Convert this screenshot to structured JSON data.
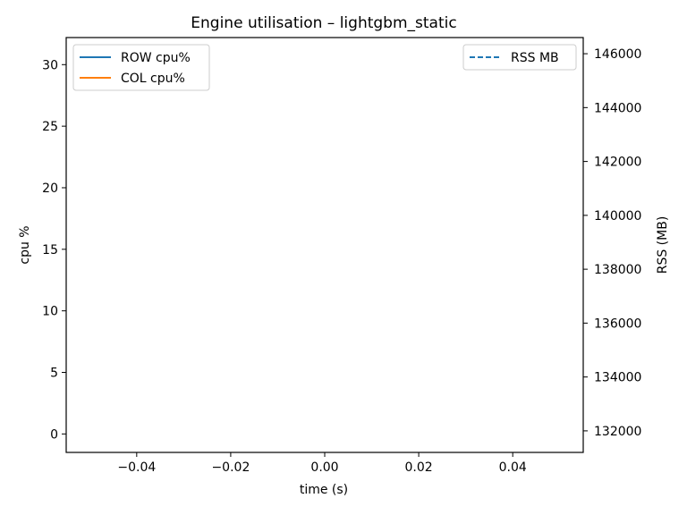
{
  "chart_data": {
    "type": "line",
    "title": "Engine utilisation – lightgbm_static",
    "xlabel": "time (s)",
    "ylabel": "cpu %",
    "y2label": "RSS (MB)",
    "xlim": [
      -0.055,
      0.055
    ],
    "ylim": [
      -1.5,
      32.2
    ],
    "y2lim": [
      131200,
      146600
    ],
    "x_ticks": [
      -0.04,
      -0.02,
      0.0,
      0.02,
      0.04
    ],
    "x_tick_labels": [
      "−0.04",
      "−0.02",
      "0.00",
      "0.02",
      "0.04"
    ],
    "y_ticks": [
      0,
      5,
      10,
      15,
      20,
      25,
      30
    ],
    "y_tick_labels": [
      "0",
      "5",
      "10",
      "15",
      "20",
      "25",
      "30"
    ],
    "y2_ticks": [
      132000,
      134000,
      136000,
      138000,
      140000,
      142000,
      144000,
      146000
    ],
    "y2_tick_labels": [
      "132000",
      "134000",
      "136000",
      "138000",
      "140000",
      "142000",
      "144000",
      "146000"
    ],
    "grid": false,
    "series": [
      {
        "name": "ROW cpu%",
        "axis": "left",
        "color": "#1f77b4",
        "style": "solid",
        "x": [],
        "values": []
      },
      {
        "name": "COL cpu%",
        "axis": "left",
        "color": "#ff7f0e",
        "style": "solid",
        "x": [],
        "values": []
      },
      {
        "name": "RSS MB",
        "axis": "right",
        "color": "#1f77b4",
        "style": "dashed",
        "x": [],
        "values": []
      }
    ],
    "legends": [
      {
        "placement": "upper-left",
        "entries": [
          "ROW cpu%",
          "COL cpu%"
        ]
      },
      {
        "placement": "upper-right",
        "entries": [
          "RSS MB"
        ]
      }
    ]
  }
}
